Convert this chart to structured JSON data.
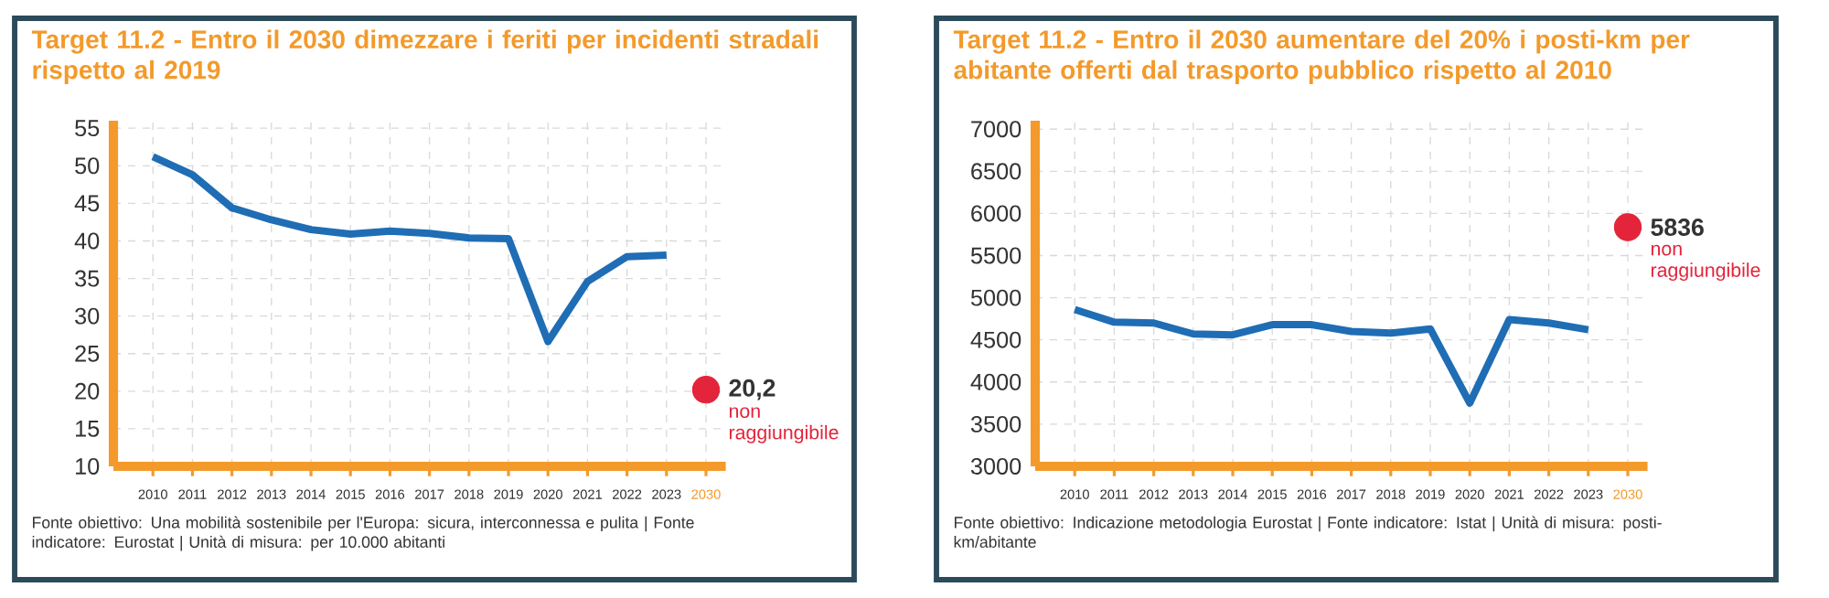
{
  "chart_data": [
    {
      "type": "line",
      "title": "Target 11.2 - Entro il 2030 dimezzare i feriti per incidenti stradali rispetto al 2019",
      "categories": [
        "2010",
        "2011",
        "2012",
        "2013",
        "2014",
        "2015",
        "2016",
        "2017",
        "2018",
        "2019",
        "2020",
        "2021",
        "2022",
        "2023",
        "2030"
      ],
      "series": [
        {
          "color": "#1f6db4",
          "values": [
            51.2,
            48.8,
            44.4,
            42.8,
            41.5,
            40.9,
            41.3,
            41.0,
            40.4,
            40.3,
            26.6,
            34.6,
            37.9,
            38.1,
            null
          ]
        },
        {
          "type": "scatter",
          "marker": "circle",
          "color": "#e3243b",
          "values": [
            null,
            null,
            null,
            null,
            null,
            null,
            null,
            null,
            null,
            null,
            null,
            null,
            null,
            null,
            20.2
          ],
          "value_labels": [
            null,
            null,
            null,
            null,
            null,
            null,
            null,
            null,
            null,
            null,
            null,
            null,
            null,
            null,
            "20,2"
          ]
        }
      ],
      "ylim": [
        10,
        56
      ],
      "yticks": [
        10,
        15,
        20,
        25,
        30,
        35,
        40,
        45,
        50,
        55
      ],
      "grid": true,
      "annotations": [
        {
          "text": "non raggiungibile",
          "x": "2030",
          "y": 20.2
        },
        "Fonte obiettivo: Una mobilità sostenibile per l'Europa: sicura, interconnessa e pulita | Fonte indicatore: Eurostat | Unità di misura: per 10.000 abitanti"
      ]
    },
    {
      "type": "line",
      "title": "Target 11.2 - Entro il 2030 aumentare del 20% i posti-km per abitante offerti dal trasporto pubblico rispetto al 2010",
      "categories": [
        "2010",
        "2011",
        "2012",
        "2013",
        "2014",
        "2015",
        "2016",
        "2017",
        "2018",
        "2019",
        "2020",
        "2021",
        "2022",
        "2023",
        "2030"
      ],
      "series": [
        {
          "color": "#1f6db4",
          "values": [
            4860,
            4710,
            4700,
            4570,
            4560,
            4680,
            4680,
            4600,
            4580,
            4630,
            3750,
            4740,
            4700,
            4620,
            null
          ]
        },
        {
          "type": "scatter",
          "marker": "circle",
          "color": "#e3243b",
          "values": [
            null,
            null,
            null,
            null,
            null,
            null,
            null,
            null,
            null,
            null,
            null,
            null,
            null,
            null,
            5836
          ],
          "value_labels": [
            null,
            null,
            null,
            null,
            null,
            null,
            null,
            null,
            null,
            null,
            null,
            null,
            null,
            null,
            "5836"
          ]
        }
      ],
      "ylim": [
        3000,
        7100
      ],
      "yticks": [
        3000,
        3500,
        4000,
        4500,
        5000,
        5500,
        6000,
        6500,
        7000
      ],
      "grid": true,
      "annotations": [
        {
          "text": "non raggiungibile",
          "x": "2030",
          "y": 5836
        },
        "Fonte obiettivo: Indicazione metodologia Eurostat | Fonte indicatore: Istat | Unità di misura: posti-km/abitante"
      ]
    }
  ]
}
